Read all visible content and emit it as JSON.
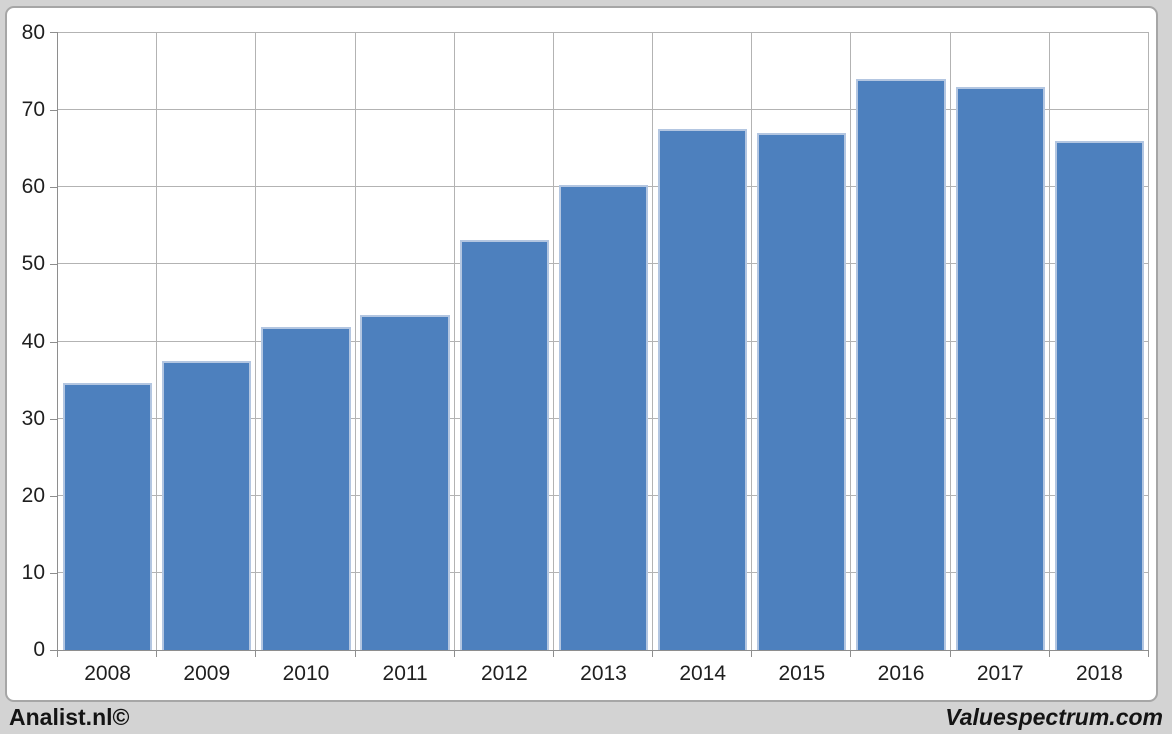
{
  "chart_data": {
    "type": "bar",
    "categories": [
      "2008",
      "2009",
      "2010",
      "2011",
      "2012",
      "2013",
      "2014",
      "2015",
      "2016",
      "2017",
      "2018"
    ],
    "values": [
      34.6,
      37.5,
      41.9,
      43.4,
      53.2,
      60.3,
      67.5,
      67.0,
      74.0,
      73.0,
      66.0
    ],
    "title": "",
    "xlabel": "",
    "ylabel": "",
    "ylim": [
      0,
      80
    ],
    "ytick_step": 10,
    "grid": true,
    "legend": "none",
    "colors": {
      "bar_fill": "#4d80be",
      "bar_border": "#b3c6e1",
      "gridline": "#b3b3b3",
      "axis_line": "#8e8e8e",
      "plot_background": "#ffffff",
      "page_background": "#d3d3d3",
      "frame_border": "#a6a6a6",
      "label_text": "#1f1f1f"
    }
  },
  "footer": {
    "left_text": "Analist.nl©",
    "right_text": "Valuespectrum.com"
  }
}
